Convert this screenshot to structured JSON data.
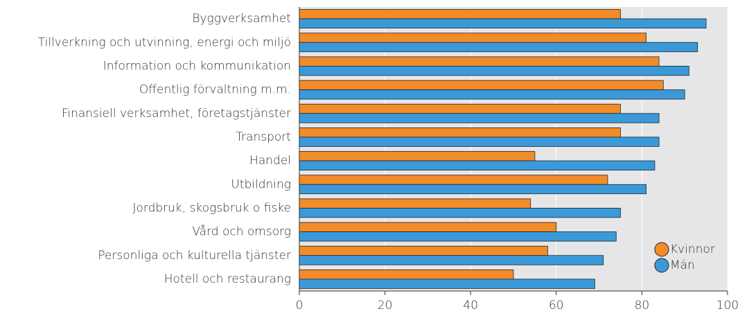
{
  "chart_data": {
    "type": "barh",
    "categories": [
      "Byggverksamhet",
      "Tillverkning och utvinning, energi och miljö",
      "Information och kommunikation",
      "Offentlig förvaltning m.m.",
      "Finansiell verksamhet, företagstjänster",
      "Transport",
      "Handel",
      "Utbildning",
      "Jordbruk, skogsbruk o fiske",
      "Vård och omsorg",
      "Personliga och kulturella tjänster",
      "Hotell och restaurang"
    ],
    "series": [
      {
        "name": "Kvinnor",
        "color": "#f28c28",
        "values": [
          75,
          81,
          84,
          85,
          75,
          75,
          55,
          72,
          54,
          60,
          58,
          50
        ]
      },
      {
        "name": "Män",
        "color": "#3a9ad9",
        "values": [
          95,
          93,
          91,
          90,
          84,
          84,
          83,
          81,
          75,
          74,
          71,
          69
        ]
      }
    ],
    "xlim": [
      0,
      100
    ],
    "xticks": [
      0,
      20,
      40,
      60,
      80,
      100
    ],
    "grid": true,
    "legend": "lower right"
  }
}
